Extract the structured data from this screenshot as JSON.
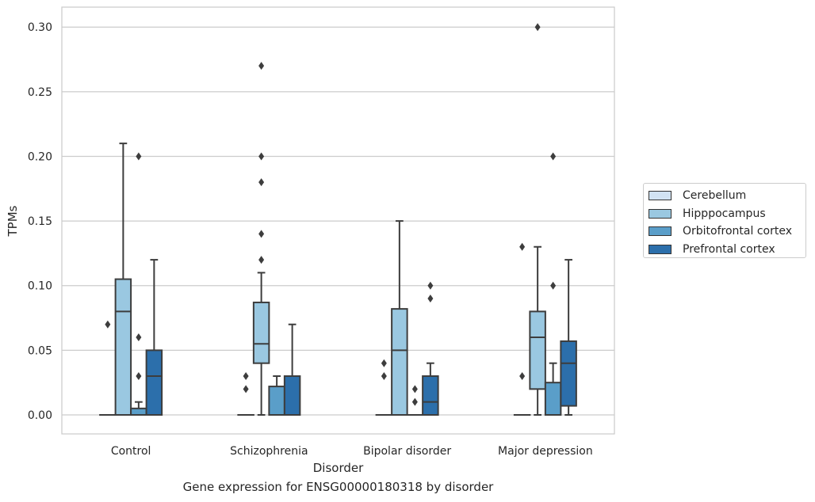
{
  "caption": "Gene expression for ENSG00000180318 by disorder",
  "chart_data": {
    "type": "box",
    "xlabel": "Disorder",
    "ylabel": "TPMs",
    "ylim": [
      -0.015,
      0.315
    ],
    "yticks": [
      "0.00",
      "0.05",
      "0.10",
      "0.15",
      "0.20",
      "0.25",
      "0.30"
    ],
    "ytick_values": [
      0,
      0.05,
      0.1,
      0.15,
      0.2,
      0.25,
      0.3
    ],
    "grid": "horizontal",
    "legend_placement": "right",
    "categories": [
      "Control",
      "Schizophrenia",
      "Bipolar disorder",
      "Major depression"
    ],
    "series": [
      {
        "name": "Cerebellum",
        "color": "#d2e3f3",
        "boxes": [
          {
            "q1": 0,
            "median": 0,
            "q3": 0,
            "whisker_low": 0,
            "whisker_high": 0,
            "outliers": [
              0.07
            ]
          },
          {
            "q1": 0,
            "median": 0,
            "q3": 0,
            "whisker_low": 0,
            "whisker_high": 0,
            "outliers": [
              0.02,
              0.03
            ]
          },
          {
            "q1": 0,
            "median": 0,
            "q3": 0,
            "whisker_low": 0,
            "whisker_high": 0,
            "outliers": [
              0.03,
              0.04
            ]
          },
          {
            "q1": 0,
            "median": 0,
            "q3": 0,
            "whisker_low": 0,
            "whisker_high": 0,
            "outliers": [
              0.03,
              0.13
            ]
          }
        ]
      },
      {
        "name": "Hipppocampus",
        "color": "#9ac8e1",
        "boxes": [
          {
            "q1": 0,
            "median": 0.08,
            "q3": 0.105,
            "whisker_low": 0,
            "whisker_high": 0.21,
            "outliers": []
          },
          {
            "q1": 0.04,
            "median": 0.055,
            "q3": 0.087,
            "whisker_low": 0,
            "whisker_high": 0.11,
            "outliers": [
              0.12,
              0.14,
              0.18,
              0.2,
              0.27
            ]
          },
          {
            "q1": 0,
            "median": 0.05,
            "q3": 0.082,
            "whisker_low": 0,
            "whisker_high": 0.15,
            "outliers": []
          },
          {
            "q1": 0.02,
            "median": 0.06,
            "q3": 0.08,
            "whisker_low": 0,
            "whisker_high": 0.13,
            "outliers": [
              0.3
            ]
          }
        ]
      },
      {
        "name": "Orbitofrontal cortex",
        "color": "#5a9ec9",
        "boxes": [
          {
            "q1": 0,
            "median": 0,
            "q3": 0.005,
            "whisker_low": 0,
            "whisker_high": 0.01,
            "outliers": [
              0.03,
              0.06,
              0.2
            ]
          },
          {
            "q1": 0,
            "median": 0,
            "q3": 0.022,
            "whisker_low": 0,
            "whisker_high": 0.03,
            "outliers": []
          },
          {
            "q1": 0,
            "median": 0,
            "q3": 0,
            "whisker_low": 0,
            "whisker_high": 0,
            "outliers": [
              0.01,
              0.02
            ]
          },
          {
            "q1": 0,
            "median": 0,
            "q3": 0.025,
            "whisker_low": 0,
            "whisker_high": 0.04,
            "outliers": [
              0.1,
              0.2
            ]
          }
        ]
      },
      {
        "name": "Prefrontal cortex",
        "color": "#2c6fab",
        "boxes": [
          {
            "q1": 0,
            "median": 0.03,
            "q3": 0.05,
            "whisker_low": 0,
            "whisker_high": 0.12,
            "outliers": []
          },
          {
            "q1": 0,
            "median": 0,
            "q3": 0.03,
            "whisker_low": 0,
            "whisker_high": 0.07,
            "outliers": []
          },
          {
            "q1": 0,
            "median": 0.01,
            "q3": 0.03,
            "whisker_low": 0,
            "whisker_high": 0.04,
            "outliers": [
              0.09,
              0.1
            ]
          },
          {
            "q1": 0.007,
            "median": 0.04,
            "q3": 0.057,
            "whisker_low": 0,
            "whisker_high": 0.12,
            "outliers": []
          }
        ]
      }
    ]
  }
}
